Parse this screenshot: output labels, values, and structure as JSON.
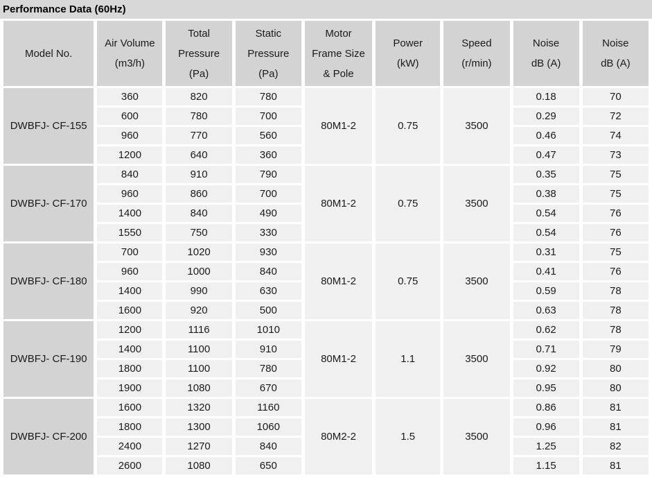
{
  "title": "Performance Data (60Hz)",
  "colors": {
    "title_bg": "#d8d8d8",
    "header_bg": "#d3d3d3",
    "model_bg": "#d3d3d3",
    "cell_bg": "#f0f0f0",
    "gap": "#ffffff",
    "text": "#1a1a1a"
  },
  "columns": [
    "Model No.",
    "Air Volume\n(m3/h)",
    "Total\nPressure\n(Pa)",
    "Static\nPressure\n(Pa)",
    "Motor\nFrame Size\n& Pole",
    "Power\n(kW)",
    "Speed\n(r/min)",
    "Noise\ndB (A)",
    "Noise\ndB (A)"
  ],
  "blocks": [
    {
      "model": "DWBFJ- CF-155",
      "motor": "80M1-2",
      "power": "0.75",
      "speed": "3500",
      "rows": [
        {
          "air": "360",
          "total": "820",
          "static": "780",
          "noise1": "0.18",
          "noise2": "70"
        },
        {
          "air": "600",
          "total": "780",
          "static": "700",
          "noise1": "0.29",
          "noise2": "72"
        },
        {
          "air": "960",
          "total": "770",
          "static": "560",
          "noise1": "0.46",
          "noise2": "74"
        },
        {
          "air": "1200",
          "total": "640",
          "static": "360",
          "noise1": "0.47",
          "noise2": "73"
        }
      ]
    },
    {
      "model": "DWBFJ- CF-170",
      "motor": "80M1-2",
      "power": "0.75",
      "speed": "3500",
      "rows": [
        {
          "air": "840",
          "total": "910",
          "static": "790",
          "noise1": "0.35",
          "noise2": "75"
        },
        {
          "air": "960",
          "total": "860",
          "static": "700",
          "noise1": "0.38",
          "noise2": "75"
        },
        {
          "air": "1400",
          "total": "840",
          "static": "490",
          "noise1": "0.54",
          "noise2": "76"
        },
        {
          "air": "1550",
          "total": "750",
          "static": "330",
          "noise1": "0.54",
          "noise2": "76"
        }
      ]
    },
    {
      "model": "DWBFJ- CF-180",
      "motor": "80M1-2",
      "power": "0.75",
      "speed": "3500",
      "rows": [
        {
          "air": "700",
          "total": "1020",
          "static": "930",
          "noise1": "0.31",
          "noise2": "75"
        },
        {
          "air": "960",
          "total": "1000",
          "static": "840",
          "noise1": "0.41",
          "noise2": "76"
        },
        {
          "air": "1400",
          "total": "990",
          "static": "630",
          "noise1": "0.59",
          "noise2": "78"
        },
        {
          "air": "1600",
          "total": "920",
          "static": "500",
          "noise1": "0.63",
          "noise2": "78"
        }
      ]
    },
    {
      "model": "DWBFJ- CF-190",
      "motor": "80M1-2",
      "power": "1.1",
      "speed": "3500",
      "rows": [
        {
          "air": "1200",
          "total": "1116",
          "static": "1010",
          "noise1": "0.62",
          "noise2": "78"
        },
        {
          "air": "1400",
          "total": "1100",
          "static": "910",
          "noise1": "0.71",
          "noise2": "79"
        },
        {
          "air": "1800",
          "total": "1100",
          "static": "780",
          "noise1": "0.92",
          "noise2": "80"
        },
        {
          "air": "1900",
          "total": "1080",
          "static": "670",
          "noise1": "0.95",
          "noise2": "80"
        }
      ]
    },
    {
      "model": "DWBFJ- CF-200",
      "motor": "80M2-2",
      "power": "1.5",
      "speed": "3500",
      "rows": [
        {
          "air": "1600",
          "total": "1320",
          "static": "1160",
          "noise1": "0.86",
          "noise2": "81"
        },
        {
          "air": "1800",
          "total": "1300",
          "static": "1060",
          "noise1": "0.96",
          "noise2": "81"
        },
        {
          "air": "2400",
          "total": "1270",
          "static": "840",
          "noise1": "1.25",
          "noise2": "82"
        },
        {
          "air": "2600",
          "total": "1080",
          "static": "650",
          "noise1": "1.15",
          "noise2": "81"
        }
      ]
    }
  ]
}
